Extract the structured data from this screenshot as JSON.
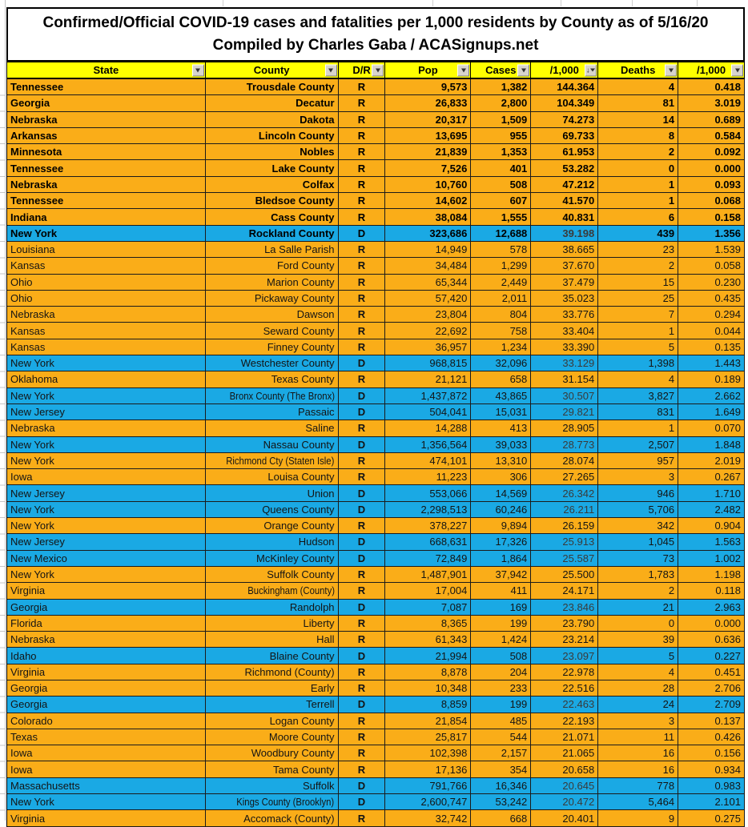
{
  "title": {
    "line1": "Confirmed/Official COVID-19 cases and fatalities per 1,000 residents by County as of 5/16/20",
    "line2": "Compiled by Charles Gaba / ACASignups.net"
  },
  "colors": {
    "republican_row": "#faad18",
    "democrat_row": "#1aa9e4",
    "header_yellow": "#ffff00"
  },
  "icons": {
    "filter_dropdown": "▼",
    "sort_descending": "↓"
  },
  "columns": [
    {
      "key": "state",
      "label": "State",
      "sorted": false
    },
    {
      "key": "county",
      "label": "County",
      "sorted": false
    },
    {
      "key": "dr",
      "label": "D/R",
      "sorted": false
    },
    {
      "key": "pop",
      "label": "Pop",
      "sorted": false
    },
    {
      "key": "cases",
      "label": "Cases",
      "sorted": false
    },
    {
      "key": "cases-per-1000",
      "label": "/1,000",
      "sorted": true
    },
    {
      "key": "deaths",
      "label": "Deaths",
      "sorted": false
    },
    {
      "key": "deaths-per-1000",
      "label": "/1,000",
      "sorted": false
    }
  ],
  "rows": [
    {
      "state": "Tennessee",
      "county": "Trousdale County",
      "party": "R",
      "pop": "9,573",
      "cases": "1,382",
      "per1000": "144.364",
      "deaths": "4",
      "dper1000": "0.418",
      "bold": true
    },
    {
      "state": "Georgia",
      "county": "Decatur",
      "party": "R",
      "pop": "26,833",
      "cases": "2,800",
      "per1000": "104.349",
      "deaths": "81",
      "dper1000": "3.019",
      "bold": true
    },
    {
      "state": "Nebraska",
      "county": "Dakota",
      "party": "R",
      "pop": "20,317",
      "cases": "1,509",
      "per1000": "74.273",
      "deaths": "14",
      "dper1000": "0.689",
      "bold": true
    },
    {
      "state": "Arkansas",
      "county": "Lincoln County",
      "party": "R",
      "pop": "13,695",
      "cases": "955",
      "per1000": "69.733",
      "deaths": "8",
      "dper1000": "0.584",
      "bold": true
    },
    {
      "state": "Minnesota",
      "county": "Nobles",
      "party": "R",
      "pop": "21,839",
      "cases": "1,353",
      "per1000": "61.953",
      "deaths": "2",
      "dper1000": "0.092",
      "bold": true
    },
    {
      "state": "Tennessee",
      "county": "Lake County",
      "party": "R",
      "pop": "7,526",
      "cases": "401",
      "per1000": "53.282",
      "deaths": "0",
      "dper1000": "0.000",
      "bold": true
    },
    {
      "state": "Nebraska",
      "county": "Colfax",
      "party": "R",
      "pop": "10,760",
      "cases": "508",
      "per1000": "47.212",
      "deaths": "1",
      "dper1000": "0.093",
      "bold": true
    },
    {
      "state": "Tennessee",
      "county": "Bledsoe County",
      "party": "R",
      "pop": "14,602",
      "cases": "607",
      "per1000": "41.570",
      "deaths": "1",
      "dper1000": "0.068",
      "bold": true
    },
    {
      "state": "Indiana",
      "county": "Cass County",
      "party": "R",
      "pop": "38,084",
      "cases": "1,555",
      "per1000": "40.831",
      "deaths": "6",
      "dper1000": "0.158",
      "bold": true
    },
    {
      "state": "New York",
      "county": "Rockland County",
      "party": "D",
      "pop": "323,686",
      "cases": "12,688",
      "per1000": "39.198",
      "deaths": "439",
      "dper1000": "1.356",
      "bold": true
    },
    {
      "state": "Louisiana",
      "county": "La Salle Parish",
      "party": "R",
      "pop": "14,949",
      "cases": "578",
      "per1000": "38.665",
      "deaths": "23",
      "dper1000": "1.539",
      "bold": false
    },
    {
      "state": "Kansas",
      "county": "Ford County",
      "party": "R",
      "pop": "34,484",
      "cases": "1,299",
      "per1000": "37.670",
      "deaths": "2",
      "dper1000": "0.058",
      "bold": false
    },
    {
      "state": "Ohio",
      "county": "Marion County",
      "party": "R",
      "pop": "65,344",
      "cases": "2,449",
      "per1000": "37.479",
      "deaths": "15",
      "dper1000": "0.230",
      "bold": false
    },
    {
      "state": "Ohio",
      "county": "Pickaway County",
      "party": "R",
      "pop": "57,420",
      "cases": "2,011",
      "per1000": "35.023",
      "deaths": "25",
      "dper1000": "0.435",
      "bold": false
    },
    {
      "state": "Nebraska",
      "county": "Dawson",
      "party": "R",
      "pop": "23,804",
      "cases": "804",
      "per1000": "33.776",
      "deaths": "7",
      "dper1000": "0.294",
      "bold": false
    },
    {
      "state": "Kansas",
      "county": "Seward County",
      "party": "R",
      "pop": "22,692",
      "cases": "758",
      "per1000": "33.404",
      "deaths": "1",
      "dper1000": "0.044",
      "bold": false
    },
    {
      "state": "Kansas",
      "county": "Finney County",
      "party": "R",
      "pop": "36,957",
      "cases": "1,234",
      "per1000": "33.390",
      "deaths": "5",
      "dper1000": "0.135",
      "bold": false
    },
    {
      "state": "New York",
      "county": "Westchester County",
      "party": "D",
      "pop": "968,815",
      "cases": "32,096",
      "per1000": "33.129",
      "deaths": "1,398",
      "dper1000": "1.443",
      "bold": false
    },
    {
      "state": "Oklahoma",
      "county": "Texas County",
      "party": "R",
      "pop": "21,121",
      "cases": "658",
      "per1000": "31.154",
      "deaths": "4",
      "dper1000": "0.189",
      "bold": false
    },
    {
      "state": "New York",
      "county": "Bronx County (The Bronx)",
      "party": "D",
      "pop": "1,437,872",
      "cases": "43,865",
      "per1000": "30.507",
      "deaths": "3,827",
      "dper1000": "2.662",
      "bold": false
    },
    {
      "state": "New Jersey",
      "county": "Passaic",
      "party": "D",
      "pop": "504,041",
      "cases": "15,031",
      "per1000": "29.821",
      "deaths": "831",
      "dper1000": "1.649",
      "bold": false
    },
    {
      "state": "Nebraska",
      "county": "Saline",
      "party": "R",
      "pop": "14,288",
      "cases": "413",
      "per1000": "28.905",
      "deaths": "1",
      "dper1000": "0.070",
      "bold": false
    },
    {
      "state": "New York",
      "county": "Nassau County",
      "party": "D",
      "pop": "1,356,564",
      "cases": "39,033",
      "per1000": "28.773",
      "deaths": "2,507",
      "dper1000": "1.848",
      "bold": false
    },
    {
      "state": "New York",
      "county": "Richmond Cty (Staten Isle)",
      "party": "R",
      "pop": "474,101",
      "cases": "13,310",
      "per1000": "28.074",
      "deaths": "957",
      "dper1000": "2.019",
      "bold": false
    },
    {
      "state": "Iowa",
      "county": "Louisa County",
      "party": "R",
      "pop": "11,223",
      "cases": "306",
      "per1000": "27.265",
      "deaths": "3",
      "dper1000": "0.267",
      "bold": false
    },
    {
      "state": "New Jersey",
      "county": "Union",
      "party": "D",
      "pop": "553,066",
      "cases": "14,569",
      "per1000": "26.342",
      "deaths": "946",
      "dper1000": "1.710",
      "bold": false
    },
    {
      "state": "New York",
      "county": "Queens County",
      "party": "D",
      "pop": "2,298,513",
      "cases": "60,246",
      "per1000": "26.211",
      "deaths": "5,706",
      "dper1000": "2.482",
      "bold": false
    },
    {
      "state": "New York",
      "county": "Orange County",
      "party": "R",
      "pop": "378,227",
      "cases": "9,894",
      "per1000": "26.159",
      "deaths": "342",
      "dper1000": "0.904",
      "bold": false
    },
    {
      "state": "New Jersey",
      "county": "Hudson",
      "party": "D",
      "pop": "668,631",
      "cases": "17,326",
      "per1000": "25.913",
      "deaths": "1,045",
      "dper1000": "1.563",
      "bold": false
    },
    {
      "state": "New Mexico",
      "county": "McKinley County",
      "party": "D",
      "pop": "72,849",
      "cases": "1,864",
      "per1000": "25.587",
      "deaths": "73",
      "dper1000": "1.002",
      "bold": false
    },
    {
      "state": "New York",
      "county": "Suffolk County",
      "party": "R",
      "pop": "1,487,901",
      "cases": "37,942",
      "per1000": "25.500",
      "deaths": "1,783",
      "dper1000": "1.198",
      "bold": false
    },
    {
      "state": "Virginia",
      "county": "Buckingham (County)",
      "party": "R",
      "pop": "17,004",
      "cases": "411",
      "per1000": "24.171",
      "deaths": "2",
      "dper1000": "0.118",
      "bold": false
    },
    {
      "state": "Georgia",
      "county": "Randolph",
      "party": "D",
      "pop": "7,087",
      "cases": "169",
      "per1000": "23.846",
      "deaths": "21",
      "dper1000": "2.963",
      "bold": false
    },
    {
      "state": "Florida",
      "county": "Liberty",
      "party": "R",
      "pop": "8,365",
      "cases": "199",
      "per1000": "23.790",
      "deaths": "0",
      "dper1000": "0.000",
      "bold": false
    },
    {
      "state": "Nebraska",
      "county": "Hall",
      "party": "R",
      "pop": "61,343",
      "cases": "1,424",
      "per1000": "23.214",
      "deaths": "39",
      "dper1000": "0.636",
      "bold": false
    },
    {
      "state": "Idaho",
      "county": "Blaine County",
      "party": "D",
      "pop": "21,994",
      "cases": "508",
      "per1000": "23.097",
      "deaths": "5",
      "dper1000": "0.227",
      "bold": false
    },
    {
      "state": "Virginia",
      "county": "Richmond (County)",
      "party": "R",
      "pop": "8,878",
      "cases": "204",
      "per1000": "22.978",
      "deaths": "4",
      "dper1000": "0.451",
      "bold": false
    },
    {
      "state": "Georgia",
      "county": "Early",
      "party": "R",
      "pop": "10,348",
      "cases": "233",
      "per1000": "22.516",
      "deaths": "28",
      "dper1000": "2.706",
      "bold": false
    },
    {
      "state": "Georgia",
      "county": "Terrell",
      "party": "D",
      "pop": "8,859",
      "cases": "199",
      "per1000": "22.463",
      "deaths": "24",
      "dper1000": "2.709",
      "bold": false
    },
    {
      "state": "Colorado",
      "county": "Logan County",
      "party": "R",
      "pop": "21,854",
      "cases": "485",
      "per1000": "22.193",
      "deaths": "3",
      "dper1000": "0.137",
      "bold": false
    },
    {
      "state": "Texas",
      "county": "Moore County",
      "party": "R",
      "pop": "25,817",
      "cases": "544",
      "per1000": "21.071",
      "deaths": "11",
      "dper1000": "0.426",
      "bold": false
    },
    {
      "state": "Iowa",
      "county": "Woodbury County",
      "party": "R",
      "pop": "102,398",
      "cases": "2,157",
      "per1000": "21.065",
      "deaths": "16",
      "dper1000": "0.156",
      "bold": false
    },
    {
      "state": "Iowa",
      "county": "Tama County",
      "party": "R",
      "pop": "17,136",
      "cases": "354",
      "per1000": "20.658",
      "deaths": "16",
      "dper1000": "0.934",
      "bold": false
    },
    {
      "state": "Massachusetts",
      "county": "Suffolk",
      "party": "D",
      "pop": "791,766",
      "cases": "16,346",
      "per1000": "20.645",
      "deaths": "778",
      "dper1000": "0.983",
      "bold": false
    },
    {
      "state": "New York",
      "county": "Kings County (Brooklyn)",
      "party": "D",
      "pop": "2,600,747",
      "cases": "53,242",
      "per1000": "20.472",
      "deaths": "5,464",
      "dper1000": "2.101",
      "bold": false
    },
    {
      "state": "Virginia",
      "county": "Accomack (County)",
      "party": "R",
      "pop": "32,742",
      "cases": "668",
      "per1000": "20.401",
      "deaths": "9",
      "dper1000": "0.275",
      "bold": false
    }
  ]
}
